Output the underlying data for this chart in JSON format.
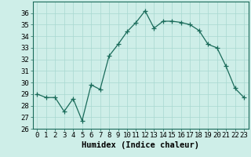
{
  "x": [
    0,
    1,
    2,
    3,
    4,
    5,
    6,
    7,
    8,
    9,
    10,
    11,
    12,
    13,
    14,
    15,
    16,
    17,
    18,
    19,
    20,
    21,
    22,
    23
  ],
  "y": [
    29.0,
    28.7,
    28.7,
    27.5,
    28.6,
    26.7,
    29.8,
    29.4,
    32.3,
    33.3,
    34.4,
    35.2,
    36.2,
    34.7,
    35.3,
    35.3,
    35.2,
    35.0,
    34.5,
    33.3,
    33.0,
    31.4,
    29.5,
    28.7
  ],
  "xlabel": "Humidex (Indice chaleur)",
  "ylim": [
    26,
    37
  ],
  "xlim": [
    -0.5,
    23.5
  ],
  "yticks": [
    26,
    27,
    28,
    29,
    30,
    31,
    32,
    33,
    34,
    35,
    36
  ],
  "xticks": [
    0,
    1,
    2,
    3,
    4,
    5,
    6,
    7,
    8,
    9,
    10,
    11,
    12,
    13,
    14,
    15,
    16,
    17,
    18,
    19,
    20,
    21,
    22,
    23
  ],
  "line_color": "#1a6b5a",
  "marker": "+",
  "marker_size": 4,
  "bg_color": "#ceeee8",
  "grid_color": "#a8d8d0",
  "tick_fontsize": 6.5,
  "xlabel_fontsize": 7.5
}
